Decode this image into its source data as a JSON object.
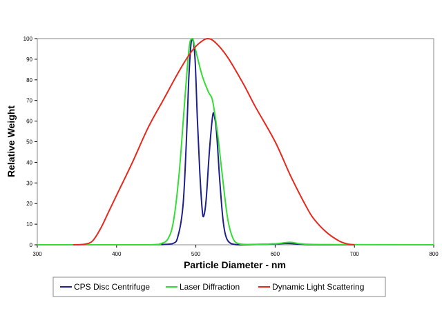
{
  "chart_data": {
    "type": "line",
    "xlabel": "Particle Diameter - nm",
    "ylabel": "Relative Weight",
    "xlim": [
      300,
      800
    ],
    "ylim": [
      0,
      100
    ],
    "x_ticks": [
      300,
      400,
      500,
      600,
      700,
      800
    ],
    "y_ticks": [
      0,
      10,
      20,
      30,
      40,
      50,
      60,
      70,
      80,
      90,
      100
    ],
    "grid": false,
    "legend_position": "bottom",
    "series": [
      {
        "name": "CPS Disc Centrifuge",
        "color": "#1f1f8c",
        "points": [
          [
            440,
            0
          ],
          [
            470,
            0.5
          ],
          [
            478,
            5
          ],
          [
            484,
            20
          ],
          [
            488,
            50
          ],
          [
            491,
            80
          ],
          [
            494,
            98
          ],
          [
            496,
            100
          ],
          [
            499,
            90
          ],
          [
            502,
            60
          ],
          [
            505,
            35
          ],
          [
            508,
            17
          ],
          [
            510,
            14
          ],
          [
            513,
            22
          ],
          [
            517,
            45
          ],
          [
            521,
            62
          ],
          [
            523,
            63
          ],
          [
            526,
            55
          ],
          [
            530,
            32
          ],
          [
            534,
            13
          ],
          [
            538,
            4
          ],
          [
            545,
            0.5
          ],
          [
            560,
            0
          ],
          [
            590,
            0.3
          ],
          [
            610,
            0.6
          ],
          [
            620,
            0.6
          ],
          [
            640,
            0.1
          ],
          [
            700,
            0
          ]
        ]
      },
      {
        "name": "Laser Diffraction",
        "color": "#33dd33",
        "points": [
          [
            300,
            0
          ],
          [
            440,
            0
          ],
          [
            455,
            0.5
          ],
          [
            465,
            3
          ],
          [
            472,
            12
          ],
          [
            479,
            35
          ],
          [
            485,
            65
          ],
          [
            490,
            90
          ],
          [
            493,
            99
          ],
          [
            496,
            100
          ],
          [
            500,
            94
          ],
          [
            508,
            82
          ],
          [
            516,
            74
          ],
          [
            521,
            70
          ],
          [
            527,
            55
          ],
          [
            533,
            35
          ],
          [
            540,
            13
          ],
          [
            547,
            3
          ],
          [
            555,
            0.5
          ],
          [
            570,
            0.2
          ],
          [
            600,
            0.5
          ],
          [
            618,
            1.2
          ],
          [
            630,
            0.6
          ],
          [
            645,
            0.2
          ],
          [
            680,
            0.1
          ],
          [
            800,
            0
          ]
        ]
      },
      {
        "name": "Dynamic Light Scattering",
        "color": "#e8281c",
        "points": [
          [
            345,
            0
          ],
          [
            360,
            0.3
          ],
          [
            370,
            2
          ],
          [
            380,
            8
          ],
          [
            390,
            16
          ],
          [
            400,
            24
          ],
          [
            420,
            40
          ],
          [
            440,
            57
          ],
          [
            460,
            71
          ],
          [
            480,
            85
          ],
          [
            495,
            94
          ],
          [
            505,
            98
          ],
          [
            515,
            100
          ],
          [
            525,
            98
          ],
          [
            540,
            91
          ],
          [
            560,
            78
          ],
          [
            575,
            67
          ],
          [
            600,
            50
          ],
          [
            620,
            33
          ],
          [
            640,
            18
          ],
          [
            650,
            12
          ],
          [
            665,
            6
          ],
          [
            680,
            2
          ],
          [
            690,
            0.5
          ],
          [
            700,
            0
          ]
        ]
      }
    ]
  }
}
